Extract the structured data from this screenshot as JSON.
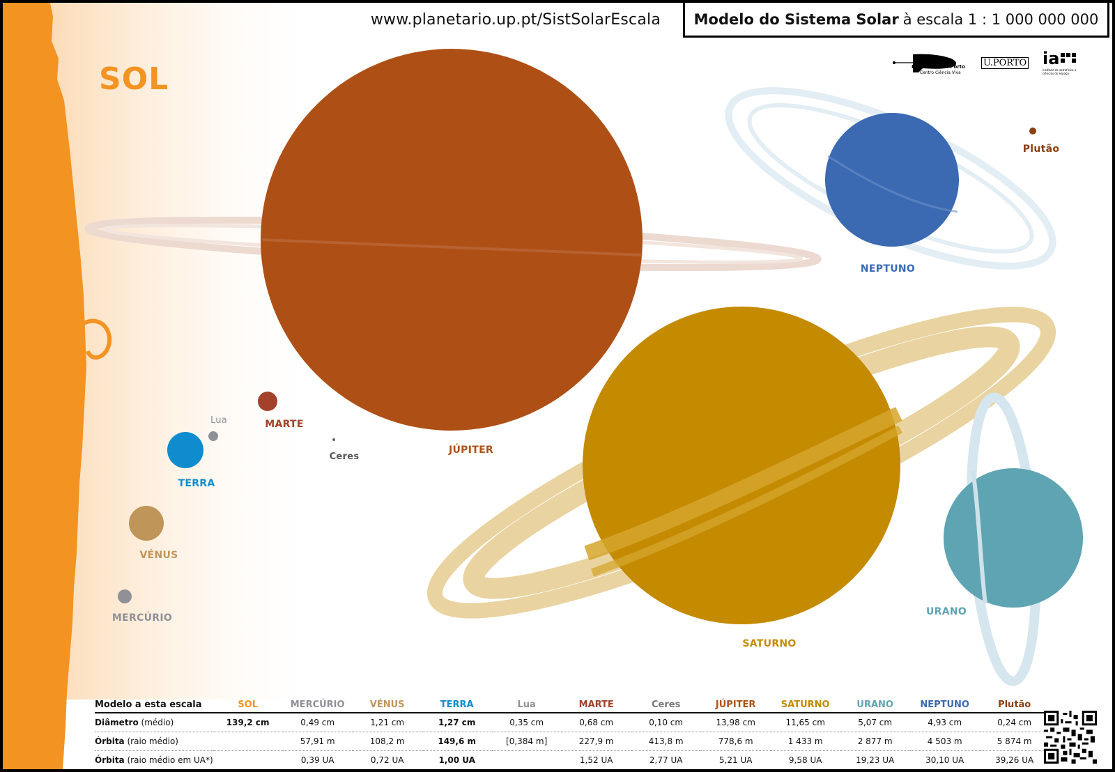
{
  "header": {
    "url": "www.planetario.up.pt/SistSolarEscala",
    "title_bold": "Modelo do Sistema Solar",
    "title_rest": "à escala 1 : 1 000 000 000"
  },
  "logos": {
    "planetario_name": "Planetário do Porto",
    "planetario_sub": "Centro Ciência Viva",
    "uporto": "U.PORTO",
    "ia_mark": "ia",
    "ia_text": "instituto de astrofísica e ciências do espaço"
  },
  "labels": {
    "sol": "SOL",
    "mercurio": "MERCÚRIO",
    "venus": "VÉNUS",
    "terra": "TERRA",
    "lua": "Lua",
    "marte": "MARTE",
    "ceres": "Ceres",
    "jupiter": "JÚPITER",
    "saturno": "SATURNO",
    "urano": "URANO",
    "neptuno": "NEPTUNO",
    "plutao": "Plutão"
  },
  "colors": {
    "sol": "#f39322",
    "mercurio": "#8f9197",
    "venus": "#c0955a",
    "terra": "#0f8ccd",
    "lua": "#8f9197",
    "marte": "#a2422a",
    "ceres": "#666666",
    "jupiter": "#ae5016",
    "saturno": "#c48a00",
    "saturno_ring": "#e9d3a0",
    "urano": "#5fa4b3",
    "urano_ring": "#d6e6ee",
    "neptuno": "#3b6ab3",
    "neptuno_ring": "#dde9f1",
    "plutao": "#8b3f13"
  },
  "table": {
    "header_label": "Modelo a esta escala",
    "columns": [
      "SOL",
      "MERCÚRIO",
      "VÉNUS",
      "TERRA",
      "Lua",
      "MARTE",
      "Ceres",
      "JÚPITER",
      "SATURNO",
      "URANO",
      "NEPTUNO",
      "Plutão"
    ],
    "rows": [
      {
        "label_bold": "Diâmetro",
        "label_rest": " (médio)",
        "values": [
          "139,2 cm",
          "0,49 cm",
          "1,21 cm",
          "1,27 cm",
          "0,35 cm",
          "0,68 cm",
          "0,10 cm",
          "13,98 cm",
          "11,65 cm",
          "5,07 cm",
          "4,93 cm",
          "0,24 cm"
        ]
      },
      {
        "label_bold": "Órbita",
        "label_rest": " (raio médio)",
        "values": [
          "",
          "57,91 m",
          "108,2 m",
          "149,6 m",
          "[0,384 m]",
          "227,9 m",
          "413,8 m",
          "778,6 m",
          "1 433 m",
          "2 877 m",
          "4 503 m",
          "5 874 m"
        ]
      },
      {
        "label_bold": "Órbita",
        "label_rest": " (raio médio em UA*)",
        "values": [
          "",
          "0,39 UA",
          "0,72 UA",
          "1,00 UA",
          "",
          "1,52 UA",
          "2,77 UA",
          "5,21 UA",
          "9,58 UA",
          "19,23 UA",
          "30,10 UA",
          "39,26 UA"
        ]
      }
    ]
  }
}
